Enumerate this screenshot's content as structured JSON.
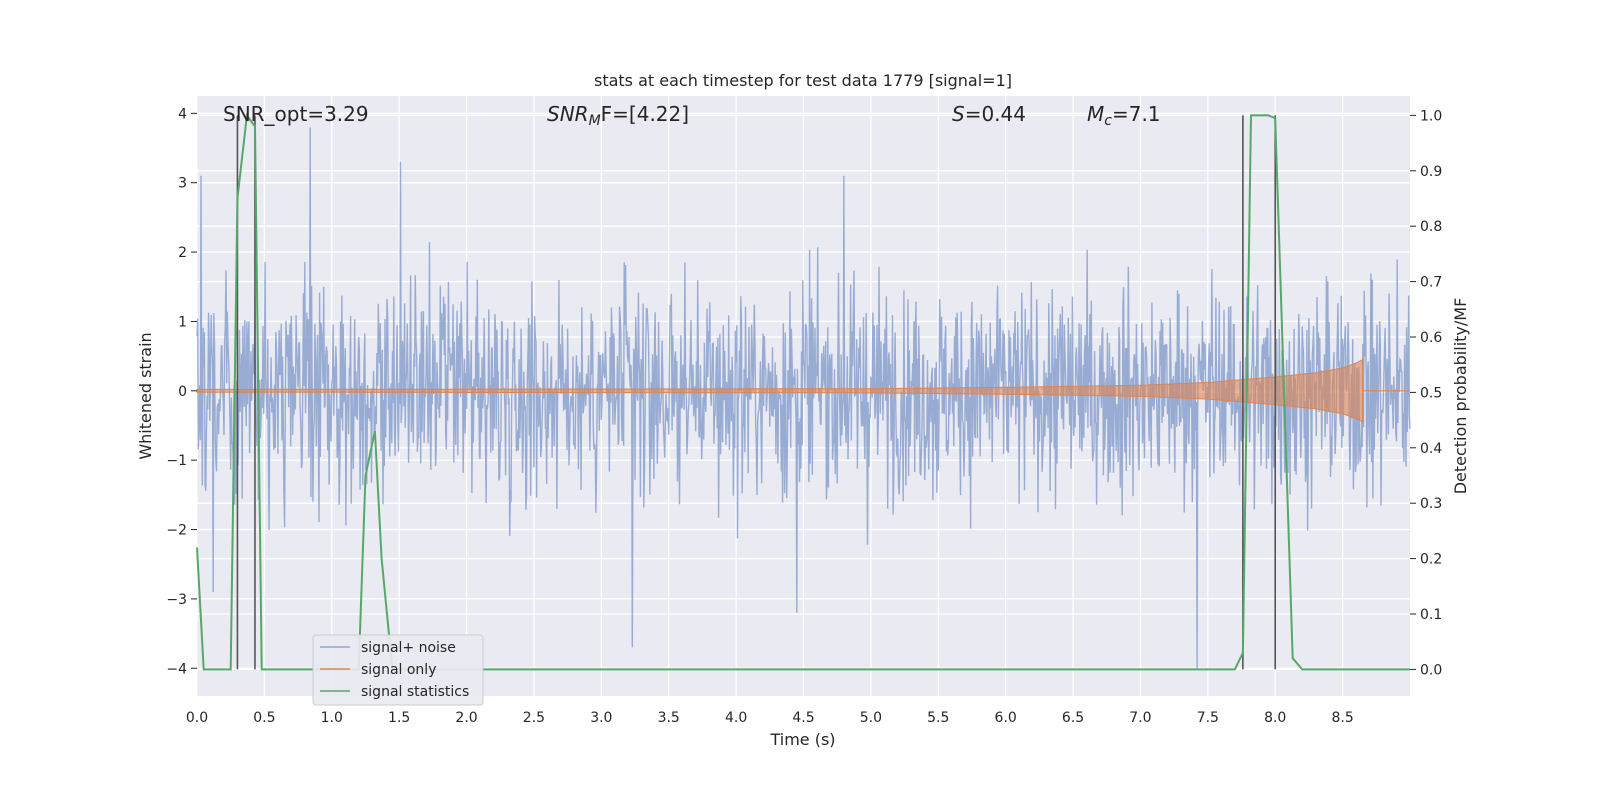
{
  "chart_data": {
    "type": "line",
    "title": "stats at each timestep for test data 1779 [signal=1]",
    "xlabel": "Time (s)",
    "ylabel": "Whitened strain",
    "y2label": "Detection probability/MF",
    "xlim": [
      0,
      9.0
    ],
    "ylim": [
      -4.4,
      4.25
    ],
    "y2lim": [
      -0.048,
      1.035
    ],
    "x_ticks": [
      "0.0",
      "0.5",
      "1.0",
      "1.5",
      "2.0",
      "2.5",
      "3.0",
      "3.5",
      "4.0",
      "4.5",
      "5.0",
      "5.5",
      "6.0",
      "6.5",
      "7.0",
      "7.5",
      "8.0",
      "8.5"
    ],
    "x_tick_values": [
      0,
      0.5,
      1,
      1.5,
      2,
      2.5,
      3,
      3.5,
      4,
      4.5,
      5,
      5.5,
      6,
      6.5,
      7,
      7.5,
      8,
      8.5
    ],
    "y_ticks": [
      "−4",
      "−3",
      "−2",
      "−1",
      "0",
      "1",
      "2",
      "3",
      "4"
    ],
    "y_tick_values": [
      -4,
      -3,
      -2,
      -1,
      0,
      1,
      2,
      3,
      4
    ],
    "y2_ticks": [
      "0.0",
      "0.1",
      "0.2",
      "0.3",
      "0.4",
      "0.5",
      "0.6",
      "0.7",
      "0.8",
      "0.9",
      "1.0"
    ],
    "y2_tick_values": [
      0,
      0.1,
      0.2,
      0.3,
      0.4,
      0.5,
      0.6,
      0.7,
      0.8,
      0.9,
      1.0
    ],
    "grid": true,
    "legend_position": "lower-left",
    "annotations": {
      "snr_opt": "SNR_opt=3.29",
      "snr_mf_pre": "SNR",
      "snr_mf_sub": "M",
      "snr_mf_post": "F=[4.22]",
      "s_label_italic": "S",
      "s_label_rest": "=0.44",
      "mc_label_italic": "M",
      "mc_label_sub": "c",
      "mc_label_rest": "=7.1"
    },
    "series": [
      {
        "name": "signal+ noise",
        "color": "#8fa5cf",
        "description": "whitened noisy strain, roughly within ±2.5 with peaks to ±3.8",
        "peaks_x": [
          0.03,
          0.12,
          0.84,
          1.51,
          3.23,
          4.45,
          4.8,
          7.42
        ],
        "peaks_y": [
          3.1,
          -2.9,
          3.8,
          3.3,
          -3.7,
          -3.2,
          3.1,
          -4.0
        ]
      },
      {
        "name": "signal only",
        "color": "#dd8452",
        "description": "chirp signal, growing amplitude toward 8.65 s",
        "envelope_x": [
          0,
          5.0,
          6.0,
          7.0,
          7.5,
          8.0,
          8.3,
          8.5,
          8.6,
          8.65
        ],
        "envelope_y": [
          0.02,
          0.03,
          0.05,
          0.08,
          0.12,
          0.2,
          0.26,
          0.33,
          0.4,
          0.45
        ]
      },
      {
        "name": "signal statistics",
        "color": "#55a868",
        "axis": "right",
        "x": [
          0,
          0.05,
          0.25,
          0.3,
          0.37,
          0.43,
          0.48,
          1.2,
          1.25,
          1.32,
          1.37,
          1.45,
          7.5,
          7.7,
          7.76,
          7.82,
          7.95,
          8.0,
          8.13,
          8.2,
          8.5,
          9.0
        ],
        "y": [
          0.22,
          0.0,
          0.0,
          0.85,
          1.0,
          0.98,
          0.0,
          0.0,
          0.35,
          0.43,
          0.2,
          0.0,
          0.0,
          0.0,
          0.03,
          1.0,
          1.0,
          0.995,
          0.02,
          0.0,
          0.0,
          0.0
        ]
      }
    ],
    "vlines_x": [
      0.3,
      0.43,
      7.76,
      8.0
    ],
    "vline_color": "#555555"
  }
}
